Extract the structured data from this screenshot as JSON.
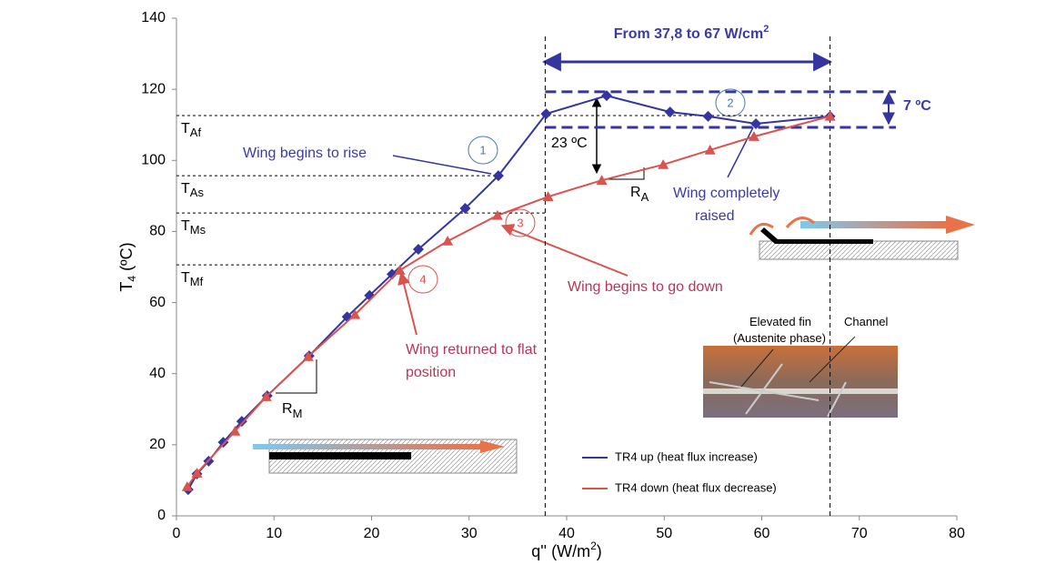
{
  "chart_data": {
    "type": "line",
    "x_label": [
      "q'' (W/m",
      "2",
      ")"
    ],
    "y_label": [
      "T",
      "4",
      " (ºC)"
    ],
    "xlim": [
      0,
      80
    ],
    "xticks": [
      0,
      10,
      20,
      30,
      40,
      50,
      60,
      70,
      80
    ],
    "ylim": [
      0,
      140
    ],
    "yticks": [
      0,
      20,
      40,
      60,
      80,
      100,
      120,
      140
    ],
    "series": [
      {
        "name": "TR4 up (heat flux increase)",
        "color": "#3535a0",
        "marker": "diamond",
        "x": [
          1.2,
          2.1,
          3.3,
          4.8,
          6.7,
          9.3,
          13.6,
          17.5,
          19.8,
          22.1,
          24.8,
          29.6,
          33.0,
          37.9,
          44.1,
          50.6,
          54.5,
          59.4,
          67.0
        ],
        "values": [
          7.4,
          11.8,
          15.4,
          20.7,
          26.6,
          33.8,
          45.0,
          56.0,
          62.0,
          68.0,
          75.0,
          86.5,
          95.7,
          113.1,
          118.2,
          113.6,
          112.4,
          110.3,
          112.4
        ]
      },
      {
        "name": "TR4 down (heat flux decrease)",
        "color": "#d9534f",
        "marker": "triangle",
        "x": [
          1.1,
          2.1,
          6.0,
          9.2,
          13.5,
          18.3,
          22.9,
          27.8,
          32.9,
          38.1,
          43.6,
          49.9,
          54.7,
          59.2,
          67.0
        ],
        "values": [
          8.2,
          12.0,
          23.8,
          33.5,
          44.8,
          56.6,
          69.1,
          77.3,
          84.5,
          89.8,
          94.4,
          98.8,
          102.9,
          106.7,
          112.4
        ]
      }
    ],
    "vlines": [
      37.8,
      67
    ],
    "band_lines": [
      119.3,
      109.3
    ],
    "levels": [
      {
        "name": "T",
        "sub": "Af",
        "value": 112.6,
        "to": 67
      },
      {
        "name": "T",
        "sub": "As",
        "value": 95.7,
        "to": 33
      },
      {
        "name": "T",
        "sub": "Ms",
        "value": 85.2,
        "to": 37.8
      },
      {
        "name": "T",
        "sub": "Mf",
        "value": 70.6,
        "to": 22.5
      }
    ]
  },
  "annotations": {
    "range": [
      "From 37,8 to 67 W/cm",
      "2"
    ],
    "delta_band": "7 ºC",
    "delta": "23 ºC",
    "rise": "Wing begins to rise",
    "raised": [
      "Wing completely",
      "raised"
    ],
    "down": "Wing begins to go down",
    "flat": [
      "Wing returned to flat",
      "position"
    ],
    "steps": [
      "1",
      "2",
      "3",
      "4"
    ],
    "RA": [
      "R",
      "A"
    ],
    "RM": [
      "R",
      "M"
    ],
    "photo": [
      "Elevated fin",
      "(Austenite phase)",
      "Channel"
    ]
  }
}
